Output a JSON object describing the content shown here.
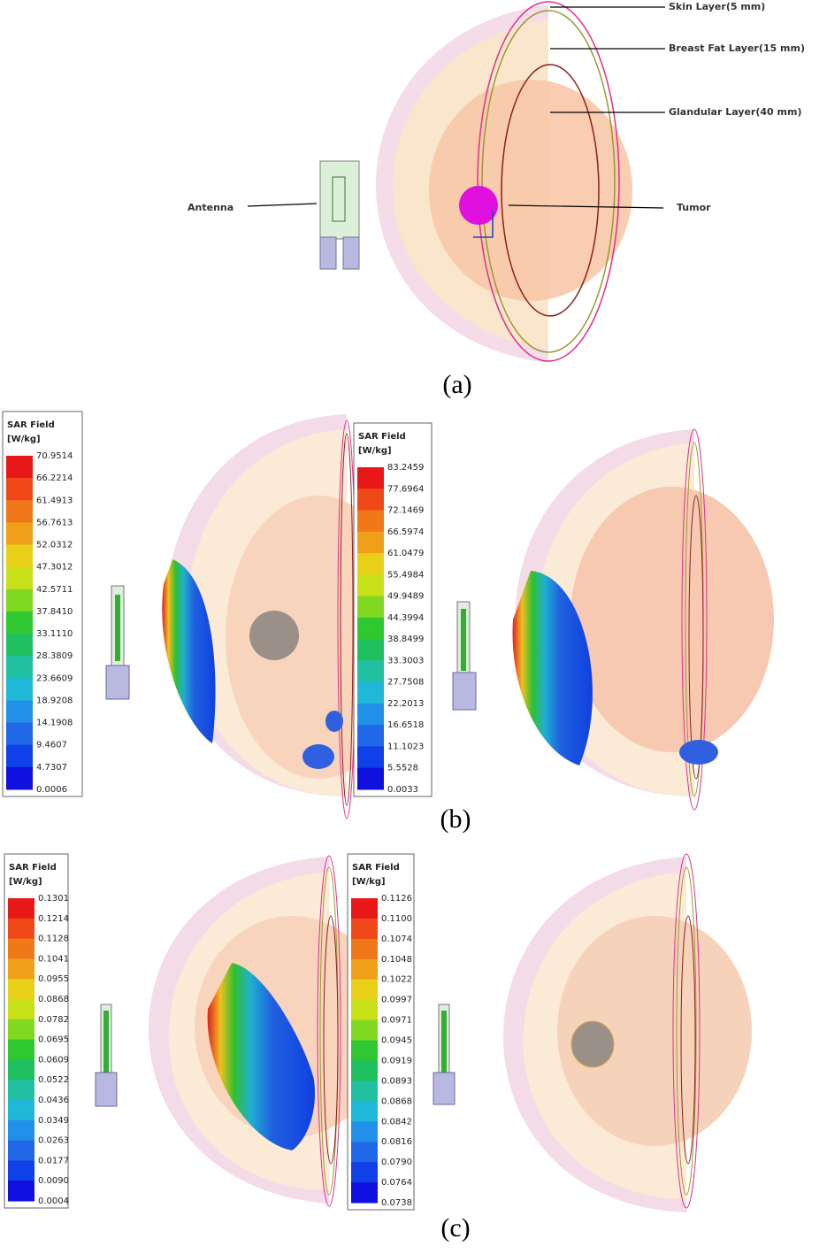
{
  "panel_a": {
    "label": "(a)",
    "annotations": {
      "skin": "Skin Layer(5 mm)",
      "fat": "Breast Fat Layer(15 mm)",
      "glandular": "Glandular Layer(40 mm)",
      "antenna": "Antenna",
      "tumor": "Tumor"
    }
  },
  "panel_b": {
    "label": "(b)",
    "legends": [
      {
        "title": "SAR Field",
        "unit": "[W/kg]",
        "ticks": [
          "70.9514",
          "66.2214",
          "61.4913",
          "56.7613",
          "52.0312",
          "47.3012",
          "42.5711",
          "37.8410",
          "33.1110",
          "28.3809",
          "23.6609",
          "18.9208",
          "14.1908",
          "9.4607",
          "4.7307",
          "0.0006"
        ]
      },
      {
        "title": "SAR Field",
        "unit": "[W/kg]",
        "ticks": [
          "83.2459",
          "77.6964",
          "72.1469",
          "66.5974",
          "61.0479",
          "55.4984",
          "49.9489",
          "44.3994",
          "38.8499",
          "33.3003",
          "27.7508",
          "22.2013",
          "16.6518",
          "11.1023",
          "5.5528",
          "0.0033"
        ]
      }
    ]
  },
  "panel_c": {
    "label": "(c)",
    "legends": [
      {
        "title": "SAR Field",
        "unit": "[W/kg]",
        "ticks": [
          "0.1301",
          "0.1214",
          "0.1128",
          "0.1041",
          "0.0955",
          "0.0868",
          "0.0782",
          "0.0695",
          "0.0609",
          "0.0522",
          "0.0436",
          "0.0349",
          "0.0263",
          "0.0177",
          "0.0090",
          "0.0004"
        ]
      },
      {
        "title": "SAR Field",
        "unit": "[W/kg]",
        "ticks": [
          "0.1126",
          "0.1100",
          "0.1074",
          "0.1048",
          "0.1022",
          "0.0997",
          "0.0971",
          "0.0945",
          "0.0919",
          "0.0893",
          "0.0868",
          "0.0842",
          "0.0816",
          "0.0790",
          "0.0764",
          "0.0738"
        ]
      }
    ]
  }
}
